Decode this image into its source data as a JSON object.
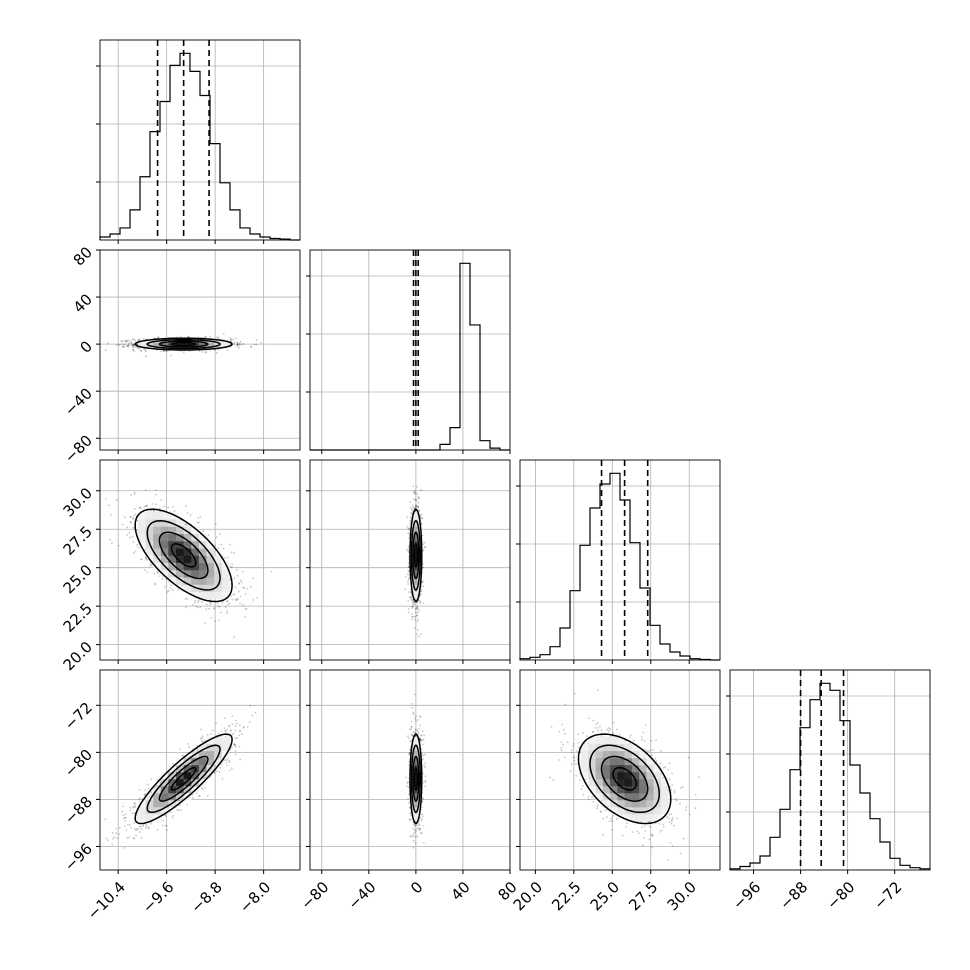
{
  "chart_data": {
    "type": "corner",
    "grid": true,
    "parameters": [
      {
        "index": 0,
        "range": [
          -10.7,
          -7.4
        ],
        "ticks": [
          -10.4,
          -9.6,
          -8.8,
          -8.0
        ],
        "tick_labels": [
          "−10.4",
          "−9.6",
          "−8.8",
          "−8.0"
        ],
        "quantiles": [
          -9.75,
          -9.32,
          -8.9
        ],
        "center": -9.32,
        "sigma": 0.4
      },
      {
        "index": 1,
        "range": [
          -90,
          80
        ],
        "ticks": [
          -80,
          -40,
          0,
          40,
          80
        ],
        "tick_labels": [
          "−80",
          "−40",
          "0",
          "40",
          "80"
        ],
        "quantiles": [
          -2,
          0,
          2
        ],
        "center": 0,
        "sigma": 2.5
      },
      {
        "index": 2,
        "range": [
          19.0,
          32.0
        ],
        "ticks": [
          20.0,
          22.5,
          25.0,
          27.5,
          30.0
        ],
        "tick_labels": [
          "20.0",
          "22.5",
          "25.0",
          "27.5",
          "30.0"
        ],
        "quantiles": [
          24.3,
          25.8,
          27.3
        ],
        "center": 25.8,
        "sigma": 1.5
      },
      {
        "index": 3,
        "range": [
          -100,
          -66
        ],
        "ticks": [
          -96,
          -88,
          -80,
          -72
        ],
        "tick_labels": [
          "−96",
          "−88",
          "−80",
          "−72"
        ],
        "quantiles": [
          -88,
          -84.5,
          -80.7
        ],
        "center": -84.5,
        "sigma": 3.8
      }
    ],
    "histograms": [
      {
        "param": 0,
        "values": [
          1,
          2,
          4,
          10,
          21,
          36,
          46,
          58,
          62,
          56,
          48,
          32,
          19,
          10,
          4,
          2,
          1,
          0.5,
          0.3,
          0
        ]
      },
      {
        "param": 1,
        "values": [
          0,
          0,
          0,
          0,
          0,
          0,
          0,
          0,
          0,
          0,
          0,
          0,
          0,
          3,
          12,
          100,
          67,
          5,
          1,
          0
        ]
      },
      {
        "param": 2,
        "values": [
          0.5,
          1,
          2,
          5,
          12,
          26,
          43,
          57,
          66,
          70,
          60,
          44,
          27,
          13,
          6,
          3,
          1.5,
          0.5,
          0.2,
          0
        ]
      },
      {
        "param": 3,
        "values": [
          0.5,
          1.5,
          3,
          6,
          14,
          26,
          43,
          61,
          73,
          80,
          77,
          64,
          45,
          33,
          22,
          12,
          5,
          2,
          1,
          0.5
        ]
      }
    ],
    "pairs": [
      {
        "x": 0,
        "y": 1,
        "rho": 0.0
      },
      {
        "x": 0,
        "y": 2,
        "rho": -0.65
      },
      {
        "x": 1,
        "y": 2,
        "rho": 0.0
      },
      {
        "x": 0,
        "y": 3,
        "rho": 0.88
      },
      {
        "x": 1,
        "y": 3,
        "rho": 0.0
      },
      {
        "x": 2,
        "y": 3,
        "rho": -0.45
      }
    ],
    "contour_levels_sigma": [
      0.5,
      1.0,
      1.5,
      2.0
    ]
  }
}
